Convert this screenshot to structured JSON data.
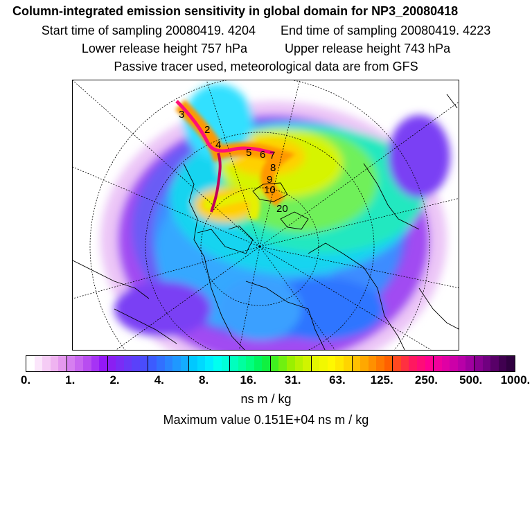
{
  "header": {
    "title": "Column-integrated emission sensitivity in global domain for NP3_20080418",
    "start_label": "Start time of sampling 20080419.  4204",
    "end_label": "End time of sampling 20080419.  4223",
    "lower_label": "Lower release height  757 hPa",
    "upper_label": "Upper release height  743 hPa",
    "tracer_label": "Passive tracer used, meteorological data are from GFS"
  },
  "map": {
    "projection": "polar-stereographic",
    "trajectory_labels": [
      "3",
      "2",
      "4",
      "5",
      "6",
      "7",
      "8",
      "9",
      "10",
      "20"
    ]
  },
  "colorbar": {
    "tick_labels": [
      "0.",
      "1.",
      "2.",
      "4.",
      "8.",
      "16.",
      "31.",
      "63.",
      "125.",
      "250.",
      "500.",
      "1000."
    ],
    "colors": [
      "#ffffff",
      "#fbe6fb",
      "#f5ccf5",
      "#efb3f0",
      "#e599ee",
      "#d67ff0",
      "#c866f0",
      "#b84df0",
      "#a633f5",
      "#9418f7",
      "#8a1ff2",
      "#7a2cf5",
      "#6a37f7",
      "#5a41fa",
      "#4a4cfc",
      "#3c5bff",
      "#3170ff",
      "#2984ff",
      "#1f98ff",
      "#14acff",
      "#00c8ff",
      "#00d9ff",
      "#00ecff",
      "#00fff0",
      "#00ffd9",
      "#00ffbe",
      "#00ff9f",
      "#00ff80",
      "#00f660",
      "#10f040",
      "#40f020",
      "#70f010",
      "#9af000",
      "#b8f200",
      "#d0f400",
      "#e4f600",
      "#f2f800",
      "#fff800",
      "#ffe800",
      "#ffd400",
      "#ffc000",
      "#ffa800",
      "#ff9000",
      "#ff7800",
      "#ff6000",
      "#ff4820",
      "#ff3040",
      "#ff1860",
      "#ff0c78",
      "#ff0090",
      "#f0009c",
      "#e000a4",
      "#cc00a8",
      "#b800a8",
      "#a000a0",
      "#880090",
      "#700080",
      "#580068",
      "#400050",
      "#300040"
    ]
  },
  "unit_label": "ns m / kg",
  "max_label": "Maximum value  0.151E+04 ns m / kg"
}
